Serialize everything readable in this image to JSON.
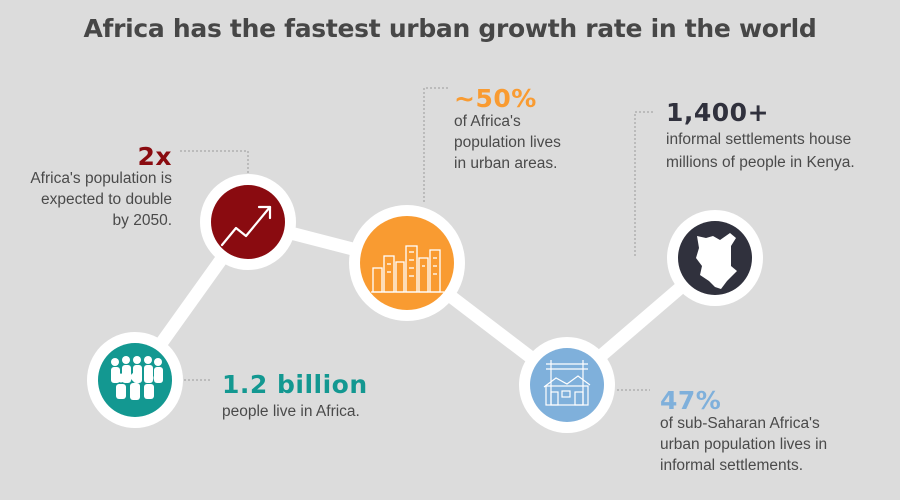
{
  "title": "Africa has the fastest urban growth rate in the world",
  "colors": {
    "background": "#dcdcdc",
    "connector": "#ffffff",
    "leader": "#9a9a9a",
    "teal": "#139891",
    "red": "#8a0b10",
    "orange": "#f99b31",
    "blue": "#7fb0db",
    "navy": "#30313d"
  },
  "nodes": [
    {
      "id": "population",
      "icon": "people-crowd-icon",
      "color": "#139891",
      "stat": "1.2 billion",
      "lines": [
        "people live in Africa."
      ]
    },
    {
      "id": "doubling",
      "icon": "trend-arrow-icon",
      "color": "#8a0b10",
      "stat": "2x",
      "lines": [
        "Africa's population is",
        "expected to double",
        "by 2050."
      ]
    },
    {
      "id": "urban",
      "icon": "city-skyline-icon",
      "color": "#f99b31",
      "stat": "~50%",
      "lines": [
        "of Africa's",
        "population lives",
        "in urban areas."
      ]
    },
    {
      "id": "settlements-share",
      "icon": "informal-settlement-icon",
      "color": "#7fb0db",
      "stat": "47%",
      "lines": [
        "of sub-Saharan Africa's",
        "urban population lives in",
        "informal settlements."
      ]
    },
    {
      "id": "kenya",
      "icon": "kenya-map-icon",
      "color": "#30313d",
      "stat": "1,400+",
      "lines": [
        "informal settlements house",
        "millions of people in Kenya."
      ]
    }
  ]
}
